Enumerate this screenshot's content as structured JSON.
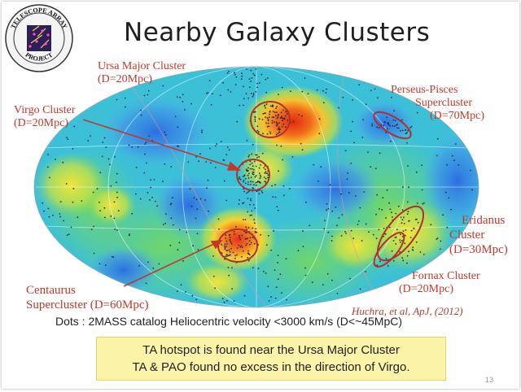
{
  "logo": {
    "text_top": "TELESCOPE ARRAY",
    "text_bottom": "PROJECT",
    "icon": "telescope-array-logo"
  },
  "title": "Nearby Galaxy Clusters",
  "clusters": {
    "ursa_major": {
      "name": "Ursa Major Cluster",
      "distance": "(D=20Mpc)"
    },
    "virgo": {
      "name": "Virgo Cluster",
      "distance": "(D=20Mpc)"
    },
    "perseus_pisces": {
      "name_line1": "Perseus-Pisces",
      "name_line2": "Supercluster",
      "distance": "(D=70Mpc)"
    },
    "eridanus": {
      "name_line1": "Eridanus",
      "name_line2": "Cluster",
      "distance": "(D=30Mpc)"
    },
    "fornax": {
      "name": "Fornax Cluster",
      "distance": "(D=20Mpc)"
    },
    "centaurus": {
      "name_line1": "Centaurus",
      "name_line2": "Supercluster (D=60Mpc)"
    }
  },
  "citation": "Huchra, et al, ApJ, (2012)",
  "dots_note": "Dots : 2MASS catalog Heliocentric velocity <3000 km/s (D<~45MpC)",
  "summary": {
    "line1": "TA hotspot is found near the Ursa Major Cluster",
    "line2": "TA & PAO found no excess in the direction of Virgo."
  },
  "page_number": "13",
  "colors": {
    "label_red": "#c0392b",
    "ellipse_red": "#b03030",
    "box_yellow": "#fbf4a8"
  }
}
